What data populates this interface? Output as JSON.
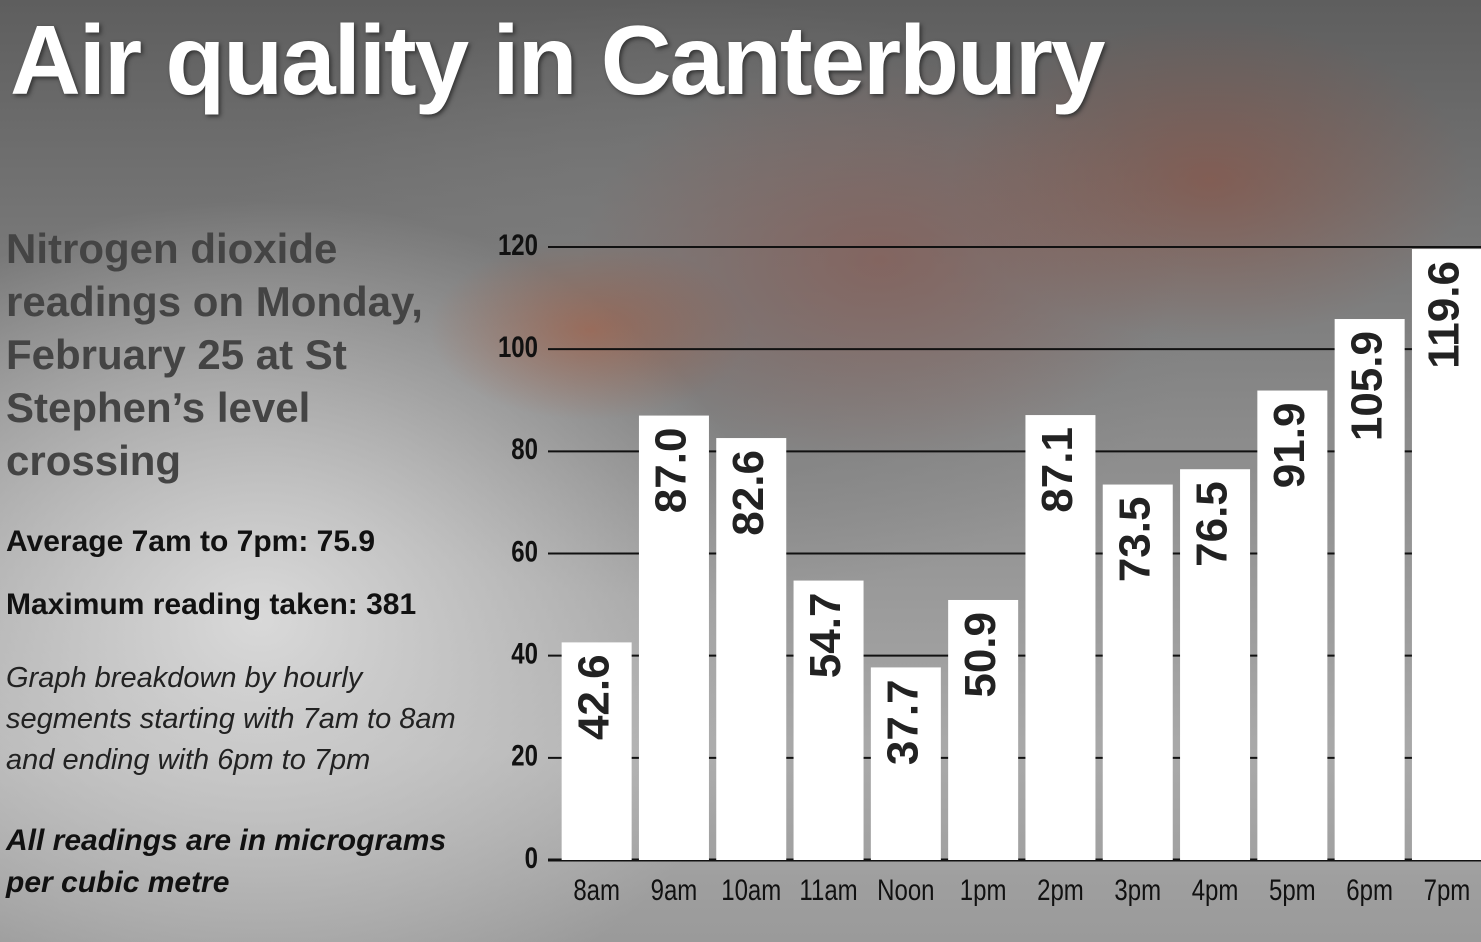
{
  "chart_data": {
    "type": "bar",
    "title": "Air quality in Canterbury",
    "subtitle": "Nitrogen dioxide readings on Monday, February 25 at St Stephen’s level crossing",
    "annotations": [
      "Average 7am to 7pm: 75.9",
      "Maximum reading taken: 381",
      "Graph breakdown by hourly segments starting with 7am to 8am and ending with 6pm to 7pm",
      "All readings are in micrograms per cubic metre"
    ],
    "categories": [
      "8am",
      "9am",
      "10am",
      "11am",
      "Noon",
      "1pm",
      "2pm",
      "3pm",
      "4pm",
      "5pm",
      "6pm",
      "7pm"
    ],
    "values": [
      42.6,
      87.0,
      82.6,
      54.7,
      37.7,
      50.9,
      87.1,
      73.5,
      76.5,
      91.9,
      105.9,
      119.6
    ],
    "value_labels": [
      "42.6",
      "87.0",
      "82.6",
      "54.7",
      "37.7",
      "50.9",
      "87.1",
      "73.5",
      "76.5",
      "91.9",
      "105.9",
      "119.6"
    ],
    "color": "#ffffff",
    "ylim": [
      0,
      120
    ],
    "yticks": [
      0,
      20,
      40,
      60,
      80,
      100,
      120
    ],
    "grid": true
  }
}
